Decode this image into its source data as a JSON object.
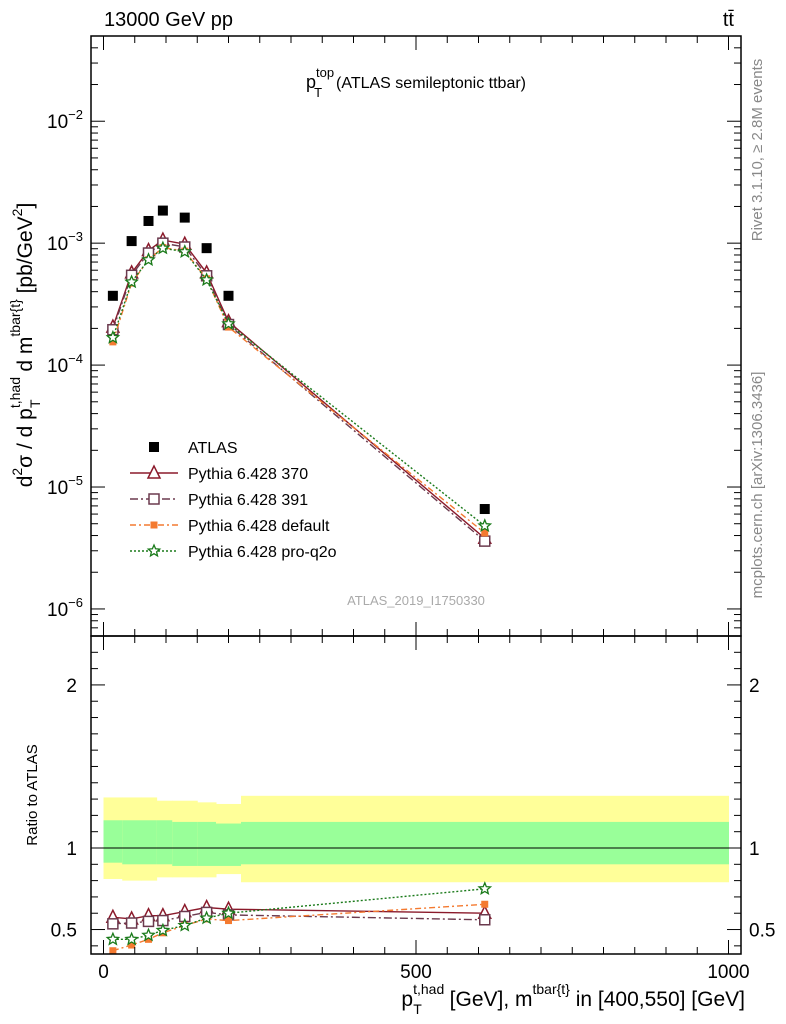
{
  "header": {
    "energy": "13000 GeV pp",
    "process": "tt̄"
  },
  "side_labels": {
    "rivet": "Rivet 3.1.10, ≥ 2.8M events",
    "mcplots": "mcplots.cern.ch [arXiv:1306.3436]"
  },
  "watermark": "ATLAS_2019_I1750330",
  "legend_items": [
    "ATLAS",
    "Pythia 6.428 370",
    "Pythia 6.428 391",
    "Pythia 6.428 default",
    "Pythia 6.428 pro-q2o"
  ],
  "chart_data": [
    {
      "type": "scatter",
      "title": "p_T^top (ATLAS semileptonic ttbar)",
      "ylabel": "d²σ / d p_T^{t,had} d m^{tbar{t}} [pb/GeV²]",
      "yscale": "log",
      "xlim": [
        -20,
        1020
      ],
      "ylim": [
        6e-07,
        0.05
      ],
      "y_ticks": [
        1e-06,
        1e-05,
        0.0001,
        0.001,
        0.01
      ],
      "y_tick_labels": [
        "10⁻⁶",
        "10⁻⁵",
        "10⁻⁴",
        "10⁻³",
        "10⁻²"
      ],
      "x": [
        15,
        45,
        72,
        95,
        130,
        165,
        200,
        610
      ],
      "series": [
        {
          "name": "ATLAS",
          "color": "#000000",
          "marker": "square-filled",
          "values": [
            0.00037,
            0.00104,
            0.00152,
            0.00185,
            0.00162,
            0.00091,
            0.00037,
            6.6e-06
          ]
        },
        {
          "name": "Pythia 6.428 370",
          "color": "#8b1a2b",
          "marker": "triangle-open",
          "dash": "",
          "values": [
            0.000205,
            0.00057,
            0.00087,
            0.00106,
            0.00098,
            0.00057,
            0.000227,
            3.8e-06
          ]
        },
        {
          "name": "Pythia 6.428 391",
          "color": "#6b3a4e",
          "marker": "square-open",
          "dash": "8,3,2,3",
          "values": [
            0.000195,
            0.000545,
            0.00083,
            0.001,
            0.00093,
            0.00054,
            0.000215,
            3.6e-06
          ]
        },
        {
          "name": "Pythia 6.428 default",
          "color": "#f47a30",
          "marker": "square-filled",
          "dash": "6,3,2,3",
          "values": [
            0.000155,
            0.00047,
            0.00073,
            0.00092,
            0.00086,
            0.00051,
            0.000205,
            4.2e-06
          ]
        },
        {
          "name": "Pythia 6.428 pro-q2o",
          "color": "#1a7a1a",
          "marker": "star",
          "dash": "2,2",
          "values": [
            0.000168,
            0.00048,
            0.00073,
            0.00091,
            0.00085,
            0.0005,
            0.000218,
            4.8e-06
          ]
        }
      ]
    },
    {
      "type": "scatter",
      "ylabel": "Ratio to ATLAS",
      "xlabel": "p_T^{t,had} [GeV], m^{tbar{t}} in [400,550] [GeV]",
      "xlim": [
        -20,
        1020
      ],
      "ylim": [
        0.35,
        2.3
      ],
      "x_ticks": [
        0,
        500,
        1000
      ],
      "x_tick_labels": [
        "0",
        "500",
        "1000"
      ],
      "y_ticks": [
        0.5,
        1,
        2
      ],
      "y_tick_labels": [
        "0.5",
        "1",
        "2"
      ],
      "bands": {
        "edges": [
          0,
          30,
          60,
          85,
          110,
          150,
          180,
          220,
          1000
        ],
        "inner": [
          [
            0.91,
            1.17
          ],
          [
            0.9,
            1.17
          ],
          [
            0.9,
            1.17
          ],
          [
            0.9,
            1.17
          ],
          [
            0.89,
            1.16
          ],
          [
            0.89,
            1.16
          ],
          [
            0.89,
            1.15
          ],
          [
            0.9,
            1.16
          ]
        ],
        "outer": [
          [
            0.81,
            1.31
          ],
          [
            0.8,
            1.31
          ],
          [
            0.8,
            1.31
          ],
          [
            0.82,
            1.29
          ],
          [
            0.82,
            1.29
          ],
          [
            0.82,
            1.28
          ],
          [
            0.84,
            1.27
          ],
          [
            0.79,
            1.32
          ]
        ],
        "inner_color": "#99ff99",
        "outer_color": "#ffff99"
      },
      "x": [
        15,
        45,
        72,
        95,
        130,
        165,
        200,
        610
      ],
      "series": [
        {
          "name": "Pythia 6.428 370",
          "color": "#8b1a2b",
          "marker": "triangle-open",
          "dash": "",
          "values": [
            0.575,
            0.565,
            0.585,
            0.585,
            0.61,
            0.635,
            0.625,
            0.6
          ]
        },
        {
          "name": "Pythia 6.428 391",
          "color": "#6b3a4e",
          "marker": "square-open",
          "dash": "8,3,2,3",
          "values": [
            0.535,
            0.54,
            0.55,
            0.555,
            0.58,
            0.605,
            0.59,
            0.56
          ]
        },
        {
          "name": "Pythia 6.428 default",
          "color": "#f47a30",
          "marker": "square-filled",
          "dash": "6,3,2,3",
          "values": [
            0.37,
            0.405,
            0.44,
            0.48,
            0.525,
            0.565,
            0.555,
            0.655
          ]
        },
        {
          "name": "Pythia 6.428 pro-q2o",
          "color": "#1a7a1a",
          "marker": "star",
          "dash": "2,2",
          "values": [
            0.44,
            0.44,
            0.465,
            0.495,
            0.525,
            0.57,
            0.6,
            0.75
          ]
        }
      ]
    }
  ]
}
